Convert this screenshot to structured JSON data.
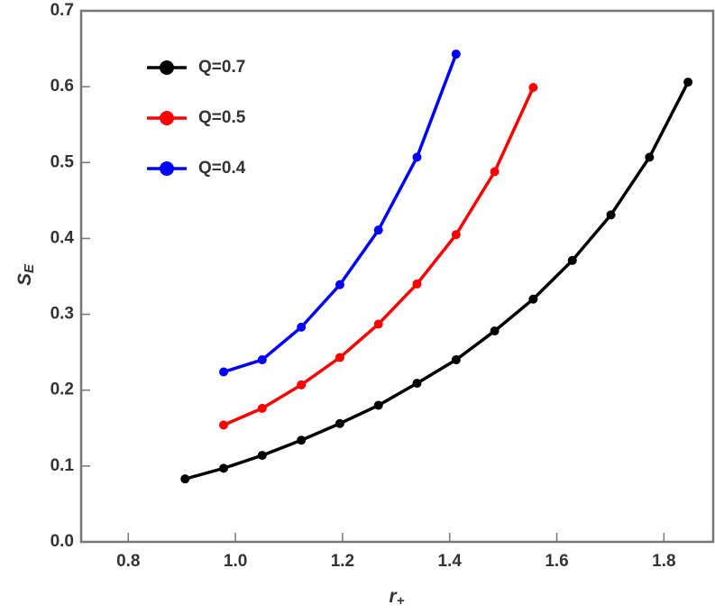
{
  "chart_data": {
    "type": "line",
    "xlabel": "r",
    "xlabel_sub": "+",
    "ylabel": "S",
    "ylabel_sub": "E",
    "x": [
      0.906,
      0.978,
      1.05,
      1.123,
      1.195,
      1.267,
      1.339,
      1.412,
      1.484,
      1.556,
      1.629,
      1.701,
      1.773,
      1.845
    ],
    "series": [
      {
        "name": "Q=0.7",
        "color": "#000000",
        "values": [
          0.083,
          0.097,
          0.114,
          0.134,
          0.156,
          0.18,
          0.209,
          0.24,
          0.278,
          0.32,
          0.371,
          0.431,
          0.507,
          0.606
        ]
      },
      {
        "name": "Q=0.5",
        "color": "#ff0000",
        "values": [
          null,
          0.154,
          0.176,
          0.207,
          0.243,
          0.287,
          0.34,
          0.405,
          0.488,
          0.599,
          null,
          null,
          null,
          null
        ]
      },
      {
        "name": "Q=0.4",
        "color": "#0000ff",
        "values": [
          null,
          0.224,
          0.24,
          0.283,
          0.339,
          0.411,
          0.507,
          0.643,
          null,
          null,
          null,
          null,
          null,
          null
        ]
      }
    ],
    "xlim": [
      0.712,
      1.892
    ],
    "xticks": [
      {
        "value": 0.8,
        "label": "0.8"
      },
      {
        "value": 1.0,
        "label": "1.0"
      },
      {
        "value": 1.2,
        "label": "1.2"
      },
      {
        "value": 1.4,
        "label": "1.4"
      },
      {
        "value": 1.6,
        "label": "1.6"
      },
      {
        "value": 1.8,
        "label": "1.8"
      }
    ],
    "ylim": [
      0,
      0.7
    ],
    "yticks": [
      {
        "value": 0,
        "label": "0.0"
      },
      {
        "value": 0.1,
        "label": "0.1"
      },
      {
        "value": 0.2,
        "label": "0.2"
      },
      {
        "value": 0.3,
        "label": "0.3"
      },
      {
        "value": 0.4,
        "label": "0.4"
      },
      {
        "value": 0.5,
        "label": "0.5"
      },
      {
        "value": 0.6,
        "label": "0.6"
      },
      {
        "value": 0.7,
        "label": "0.7"
      }
    ],
    "legend": "upper-left"
  }
}
